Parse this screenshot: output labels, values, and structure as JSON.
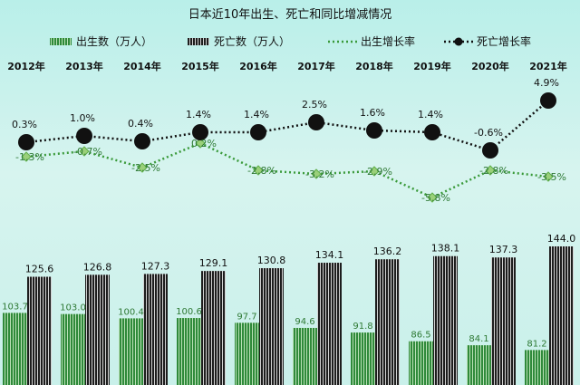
{
  "chart_data": {
    "type": "bar+line",
    "title": "日本近10年出生、死亡和同比增减情况",
    "categories": [
      "2012年",
      "2013年",
      "2014年",
      "2015年",
      "2016年",
      "2017年",
      "2018年",
      "2019年",
      "2020年",
      "2021年"
    ],
    "series": [
      {
        "name": "出生数（万人）",
        "kind": "bar",
        "color": "#2f8a3a",
        "values": [
          103.7,
          103.0,
          100.4,
          100.6,
          97.7,
          94.6,
          91.8,
          86.5,
          84.1,
          81.2
        ],
        "labels": [
          "103.7",
          "103.0",
          "100.4",
          "100.6",
          "97.7",
          "94.6",
          "91.8",
          "86.5",
          "84.1",
          "81.2"
        ]
      },
      {
        "name": "死亡数（万人）",
        "kind": "bar",
        "color": "#222222",
        "values": [
          125.6,
          126.8,
          127.3,
          129.1,
          130.8,
          134.1,
          136.2,
          138.1,
          137.3,
          144.0
        ],
        "labels": [
          "125.6",
          "126.8",
          "127.3",
          "129.1",
          "130.8",
          "134.1",
          "136.2",
          "138.1",
          "137.3",
          "144.0"
        ]
      },
      {
        "name": "出生增长率",
        "kind": "line",
        "color": "#3a9a3a",
        "values": [
          -1.3,
          -0.7,
          -2.5,
          0.2,
          -2.8,
          -3.2,
          -2.9,
          -5.8,
          -2.8,
          -3.5
        ],
        "labels": [
          "-1.3%",
          "-0.7%",
          "-2.5%",
          "0.2%",
          "-2.8%",
          "-3.2%",
          "-2.9%",
          "-5.8%",
          "-2.8%",
          "-3.5%"
        ]
      },
      {
        "name": "死亡增长率",
        "kind": "line",
        "color": "#111111",
        "values": [
          0.3,
          1.0,
          0.4,
          1.4,
          1.4,
          2.5,
          1.6,
          1.4,
          -0.6,
          4.9
        ],
        "labels": [
          "0.3%",
          "1.0%",
          "0.4%",
          "1.4%",
          "1.4%",
          "2.5%",
          "1.6%",
          "1.4%",
          "-0.6%",
          "4.9%"
        ]
      }
    ],
    "grid": false,
    "legend_position": "top"
  }
}
